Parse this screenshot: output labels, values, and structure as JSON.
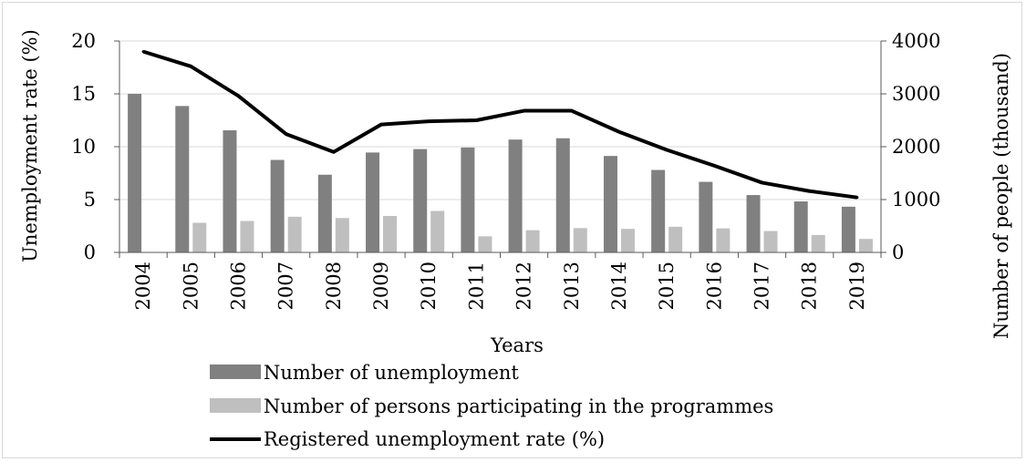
{
  "chart_data": {
    "type": "bar",
    "categories": [
      "2004",
      "2005",
      "2006",
      "2007",
      "2008",
      "2009",
      "2010",
      "2011",
      "2012",
      "2013",
      "2014",
      "2015",
      "2016",
      "2017",
      "2018",
      "2019"
    ],
    "series": [
      {
        "name": "Number of unemployment",
        "axis": "right",
        "type": "bar",
        "color": "#808080",
        "values": [
          3000,
          2770,
          2310,
          1750,
          1470,
          1890,
          1955,
          1985,
          2135,
          2160,
          1825,
          1560,
          1335,
          1085,
          965,
          865
        ]
      },
      {
        "name": "Number of persons participating in the programmes",
        "axis": "right",
        "type": "bar",
        "color": "#bfbfbf",
        "values": [
          0,
          560,
          595,
          675,
          650,
          690,
          785,
          305,
          420,
          460,
          445,
          485,
          455,
          405,
          330,
          255
        ]
      },
      {
        "name": "Registered unemployment rate (%)",
        "axis": "left",
        "type": "line",
        "color": "#000000",
        "values": [
          19.0,
          17.6,
          14.8,
          11.2,
          9.5,
          12.1,
          12.4,
          12.5,
          13.4,
          13.4,
          11.4,
          9.7,
          8.2,
          6.6,
          5.8,
          5.2
        ]
      }
    ],
    "xlabel": "Years",
    "ylabel": "Unemployment rate (%)",
    "y2label": "Number of people (thousand)",
    "ylim": [
      0,
      20
    ],
    "y2lim": [
      0,
      4000
    ],
    "yticks": [
      "0",
      "5",
      "10",
      "15",
      "20"
    ],
    "y2ticks": [
      "0",
      "1000",
      "2000",
      "3000",
      "4000"
    ],
    "grid": true,
    "legend_position": "bottom"
  }
}
